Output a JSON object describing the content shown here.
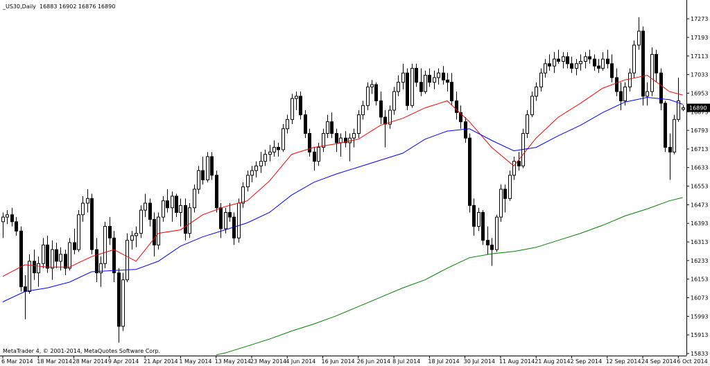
{
  "chart_data": {
    "type": "candlestick",
    "title": "_US30,Daily  16883 16902 16876 16890",
    "footer": "MetaTrader 4, © 2001-2014, MetaQuotes Software Corp.",
    "current_price": 16890,
    "ylim": [
      15824,
      17354
    ],
    "yticks": [
      17273,
      17193,
      17113,
      17033,
      16953,
      16873,
      16793,
      16713,
      16633,
      16553,
      16473,
      16393,
      16313,
      16233,
      16153,
      16073,
      15993,
      15913,
      15833
    ],
    "categories": [
      "6 Mar 2014",
      null,
      null,
      null,
      null,
      null,
      null,
      null,
      "18 Mar 2014",
      null,
      null,
      null,
      null,
      null,
      null,
      null,
      "28 Mar 2014",
      null,
      null,
      null,
      null,
      null,
      null,
      null,
      "9 Apr 2014",
      null,
      null,
      null,
      null,
      null,
      null,
      null,
      "21 Apr 2014",
      null,
      null,
      null,
      null,
      null,
      null,
      null,
      "1 May 2014",
      null,
      null,
      null,
      null,
      null,
      null,
      null,
      "13 May 2014",
      null,
      null,
      null,
      null,
      null,
      null,
      null,
      "23 May 2014",
      null,
      null,
      null,
      null,
      null,
      null,
      null,
      "4 Jun 2014",
      null,
      null,
      null,
      null,
      null,
      null,
      null,
      "16 Jun 2014",
      null,
      null,
      null,
      null,
      null,
      null,
      null,
      "26 Jun 2014",
      null,
      null,
      null,
      null,
      null,
      null,
      null,
      "8 Jul 2014",
      null,
      null,
      null,
      null,
      null,
      null,
      null,
      "18 Jul 2014",
      null,
      null,
      null,
      null,
      null,
      null,
      null,
      "30 Jul 2014",
      null,
      null,
      null,
      null,
      null,
      null,
      null,
      "11 Aug 2014",
      null,
      null,
      null,
      null,
      null,
      null,
      null,
      "21 Aug 2014",
      null,
      null,
      null,
      null,
      null,
      null,
      null,
      "2 Sep 2014",
      null,
      null,
      null,
      null,
      null,
      null,
      null,
      "12 Sep 2014",
      null,
      null,
      null,
      null,
      null,
      null,
      null,
      "24 Sep 2014",
      null,
      null,
      null,
      null,
      null,
      null,
      null,
      "6 Oct 2014",
      null
    ],
    "candles": [
      [
        16400,
        16440,
        16330,
        16420
      ],
      [
        16420,
        16450,
        16390,
        16430
      ],
      [
        16430,
        16460,
        16380,
        16400
      ],
      [
        16400,
        16420,
        16340,
        16360
      ],
      [
        16360,
        16380,
        16100,
        16120
      ],
      [
        16120,
        16170,
        15980,
        16100
      ],
      [
        16100,
        16260,
        16090,
        16230
      ],
      [
        16230,
        16280,
        16150,
        16180
      ],
      [
        16180,
        16250,
        16120,
        16220
      ],
      [
        16220,
        16330,
        16200,
        16300
      ],
      [
        16300,
        16340,
        16180,
        16200
      ],
      [
        16200,
        16320,
        16150,
        16280
      ],
      [
        16280,
        16310,
        16200,
        16230
      ],
      [
        16230,
        16290,
        16190,
        16260
      ],
      [
        16260,
        16280,
        16170,
        16200
      ],
      [
        16200,
        16330,
        16190,
        16310
      ],
      [
        16310,
        16370,
        16260,
        16280
      ],
      [
        16280,
        16450,
        16270,
        16430
      ],
      [
        16430,
        16510,
        16400,
        16480
      ],
      [
        16480,
        16540,
        16440,
        16500
      ],
      [
        16500,
        16520,
        16260,
        16280
      ],
      [
        16280,
        16330,
        16140,
        16180
      ],
      [
        16180,
        16250,
        16120,
        16220
      ],
      [
        16220,
        16400,
        16200,
        16380
      ],
      [
        16380,
        16420,
        16300,
        16330
      ],
      [
        16330,
        16360,
        16140,
        16180
      ],
      [
        16180,
        16200,
        15880,
        15950
      ],
      [
        15950,
        16180,
        15930,
        16150
      ],
      [
        16150,
        16350,
        16140,
        16320
      ],
      [
        16320,
        16360,
        16280,
        16340
      ],
      [
        16340,
        16380,
        16290,
        16350
      ],
      [
        16350,
        16470,
        16330,
        16450
      ],
      [
        16450,
        16520,
        16420,
        16480
      ],
      [
        16480,
        16500,
        16380,
        16410
      ],
      [
        16410,
        16440,
        16250,
        16300
      ],
      [
        16300,
        16440,
        16280,
        16420
      ],
      [
        16420,
        16510,
        16400,
        16490
      ],
      [
        16490,
        16540,
        16440,
        16460
      ],
      [
        16460,
        16530,
        16400,
        16510
      ],
      [
        16510,
        16520,
        16420,
        16440
      ],
      [
        16440,
        16500,
        16380,
        16470
      ],
      [
        16470,
        16500,
        16320,
        16350
      ],
      [
        16350,
        16480,
        16330,
        16460
      ],
      [
        16460,
        16560,
        16440,
        16540
      ],
      [
        16540,
        16640,
        16520,
        16620
      ],
      [
        16620,
        16680,
        16560,
        16580
      ],
      [
        16580,
        16700,
        16570,
        16680
      ],
      [
        16680,
        16700,
        16580,
        16600
      ],
      [
        16600,
        16620,
        16440,
        16460
      ],
      [
        16460,
        16480,
        16330,
        16370
      ],
      [
        16370,
        16460,
        16350,
        16440
      ],
      [
        16440,
        16480,
        16400,
        16420
      ],
      [
        16420,
        16440,
        16300,
        16330
      ],
      [
        16330,
        16500,
        16310,
        16480
      ],
      [
        16480,
        16570,
        16460,
        16550
      ],
      [
        16550,
        16620,
        16530,
        16600
      ],
      [
        16600,
        16640,
        16570,
        16620
      ],
      [
        16620,
        16660,
        16590,
        16640
      ],
      [
        16640,
        16700,
        16610,
        16660
      ],
      [
        16660,
        16710,
        16640,
        16690
      ],
      [
        16690,
        16730,
        16660,
        16700
      ],
      [
        16700,
        16750,
        16680,
        16720
      ],
      [
        16720,
        16740,
        16680,
        16710
      ],
      [
        16710,
        16820,
        16700,
        16800
      ],
      [
        16800,
        16860,
        16780,
        16840
      ],
      [
        16840,
        16950,
        16820,
        16930
      ],
      [
        16930,
        16960,
        16880,
        16940
      ],
      [
        16940,
        16960,
        16840,
        16860
      ],
      [
        16860,
        16880,
        16760,
        16780
      ],
      [
        16780,
        16800,
        16680,
        16700
      ],
      [
        16700,
        16720,
        16620,
        16660
      ],
      [
        16660,
        16740,
        16640,
        16720
      ],
      [
        16720,
        16800,
        16700,
        16780
      ],
      [
        16780,
        16860,
        16760,
        16830
      ],
      [
        16830,
        16870,
        16760,
        16780
      ],
      [
        16780,
        16800,
        16700,
        16740
      ],
      [
        16740,
        16780,
        16680,
        16760
      ],
      [
        16760,
        16790,
        16720,
        16740
      ],
      [
        16740,
        16780,
        16660,
        16760
      ],
      [
        16760,
        16800,
        16720,
        16780
      ],
      [
        16780,
        16880,
        16760,
        16860
      ],
      [
        16860,
        16920,
        16840,
        16900
      ],
      [
        16900,
        17000,
        16880,
        16980
      ],
      [
        16980,
        17010,
        16950,
        16990
      ],
      [
        16990,
        17000,
        16900,
        16920
      ],
      [
        16920,
        16960,
        16820,
        16850
      ],
      [
        16850,
        16880,
        16720,
        16820
      ],
      [
        16820,
        16900,
        16800,
        16880
      ],
      [
        16880,
        16980,
        16860,
        16960
      ],
      [
        16960,
        17030,
        16940,
        17000
      ],
      [
        17000,
        17080,
        16970,
        17040
      ],
      [
        17040,
        17060,
        16880,
        16900
      ],
      [
        16900,
        17080,
        16890,
        17060
      ],
      [
        17060,
        17080,
        16980,
        17000
      ],
      [
        17000,
        17060,
        16940,
        16960
      ],
      [
        16960,
        17050,
        16950,
        17030
      ],
      [
        17030,
        17060,
        16980,
        17000
      ],
      [
        17000,
        17050,
        16970,
        17020
      ],
      [
        17020,
        17060,
        16990,
        17040
      ],
      [
        17040,
        17070,
        16990,
        17010
      ],
      [
        17010,
        17040,
        16960,
        17000
      ],
      [
        17000,
        17040,
        16900,
        16920
      ],
      [
        16920,
        16960,
        16840,
        16870
      ],
      [
        16870,
        16900,
        16800,
        16830
      ],
      [
        16830,
        16850,
        16740,
        16760
      ],
      [
        16760,
        16780,
        16440,
        16470
      ],
      [
        16470,
        16500,
        16340,
        16380
      ],
      [
        16380,
        16460,
        16360,
        16440
      ],
      [
        16440,
        16450,
        16300,
        16320
      ],
      [
        16320,
        16380,
        16260,
        16300
      ],
      [
        16300,
        16330,
        16210,
        16280
      ],
      [
        16280,
        16430,
        16270,
        16420
      ],
      [
        16420,
        16560,
        16400,
        16540
      ],
      [
        16540,
        16560,
        16440,
        16500
      ],
      [
        16500,
        16620,
        16490,
        16600
      ],
      [
        16600,
        16680,
        16580,
        16660
      ],
      [
        16660,
        16700,
        16620,
        16640
      ],
      [
        16640,
        16800,
        16630,
        16780
      ],
      [
        16780,
        16880,
        16760,
        16860
      ],
      [
        16860,
        16960,
        16850,
        16940
      ],
      [
        16940,
        17000,
        16920,
        16980
      ],
      [
        16980,
        17060,
        16960,
        17040
      ],
      [
        17040,
        17100,
        17020,
        17080
      ],
      [
        17080,
        17120,
        17050,
        17070
      ],
      [
        17070,
        17130,
        17040,
        17100
      ],
      [
        17100,
        17140,
        17080,
        17090
      ],
      [
        17090,
        17130,
        17060,
        17110
      ],
      [
        17110,
        17130,
        17060,
        17080
      ],
      [
        17080,
        17110,
        17040,
        17060
      ],
      [
        17060,
        17100,
        17030,
        17080
      ],
      [
        17080,
        17120,
        17050,
        17090
      ],
      [
        17090,
        17130,
        17060,
        17110
      ],
      [
        17110,
        17140,
        17080,
        17100
      ],
      [
        17100,
        17120,
        17050,
        17070
      ],
      [
        17070,
        17100,
        17040,
        17060
      ],
      [
        17060,
        17130,
        17050,
        17100
      ],
      [
        17100,
        17140,
        17060,
        17080
      ],
      [
        17080,
        17120,
        17000,
        17020
      ],
      [
        17020,
        17060,
        16940,
        16960
      ],
      [
        16960,
        17000,
        16880,
        16920
      ],
      [
        16920,
        17000,
        16900,
        16980
      ],
      [
        16980,
        17060,
        16960,
        17040
      ],
      [
        17040,
        17180,
        17020,
        17160
      ],
      [
        17160,
        17280,
        17140,
        17220
      ],
      [
        17220,
        17240,
        16900,
        16940
      ],
      [
        16940,
        17000,
        16900,
        16960
      ],
      [
        16960,
        17150,
        16940,
        17120
      ],
      [
        17120,
        17140,
        17000,
        17040
      ],
      [
        17040,
        17060,
        16880,
        16910
      ],
      [
        16910,
        16920,
        16700,
        16720
      ],
      [
        16720,
        16780,
        16580,
        16700
      ],
      [
        16700,
        16860,
        16690,
        16840
      ],
      [
        16840,
        17020,
        16830,
        16920
      ],
      [
        16883,
        16902,
        16876,
        16890
      ]
    ],
    "series": [
      {
        "color": "#ff0000",
        "x": [
          0,
          5,
          10,
          15,
          20,
          25,
          30,
          35,
          40,
          45,
          50,
          55,
          60,
          65,
          70,
          75,
          80,
          85,
          90,
          95,
          100,
          105,
          110,
          115,
          120,
          125,
          130,
          135,
          140,
          145,
          150,
          153
        ],
        "values": [
          16165,
          16215,
          16205,
          16205,
          16250,
          16280,
          16230,
          16350,
          16365,
          16430,
          16465,
          16490,
          16575,
          16690,
          16720,
          16735,
          16755,
          16815,
          16845,
          16890,
          16920,
          16830,
          16720,
          16640,
          16760,
          16850,
          16910,
          16975,
          17010,
          17030,
          16960,
          16945
        ]
      },
      {
        "color": "#0000ff",
        "x": [
          0,
          5,
          10,
          15,
          20,
          25,
          30,
          35,
          40,
          45,
          50,
          55,
          60,
          65,
          70,
          75,
          80,
          85,
          90,
          95,
          100,
          105,
          110,
          115,
          120,
          125,
          130,
          135,
          140,
          145,
          150,
          153
        ],
        "values": [
          16055,
          16100,
          16115,
          16140,
          16185,
          16190,
          16195,
          16230,
          16295,
          16335,
          16365,
          16395,
          16440,
          16515,
          16570,
          16605,
          16635,
          16665,
          16695,
          16755,
          16790,
          16800,
          16750,
          16705,
          16720,
          16770,
          16815,
          16870,
          16915,
          16935,
          16925,
          16905
        ]
      },
      {
        "color": "#008000",
        "x": [
          48,
          50,
          55,
          60,
          65,
          70,
          75,
          80,
          85,
          90,
          95,
          100,
          105,
          110,
          115,
          120,
          125,
          130,
          135,
          140,
          145,
          150,
          153
        ],
        "values": [
          15827,
          15835,
          15865,
          15895,
          15930,
          15960,
          15995,
          16035,
          16075,
          16115,
          16150,
          16200,
          16245,
          16262,
          16272,
          16290,
          16320,
          16350,
          16385,
          16425,
          16455,
          16490,
          16504
        ]
      }
    ]
  }
}
